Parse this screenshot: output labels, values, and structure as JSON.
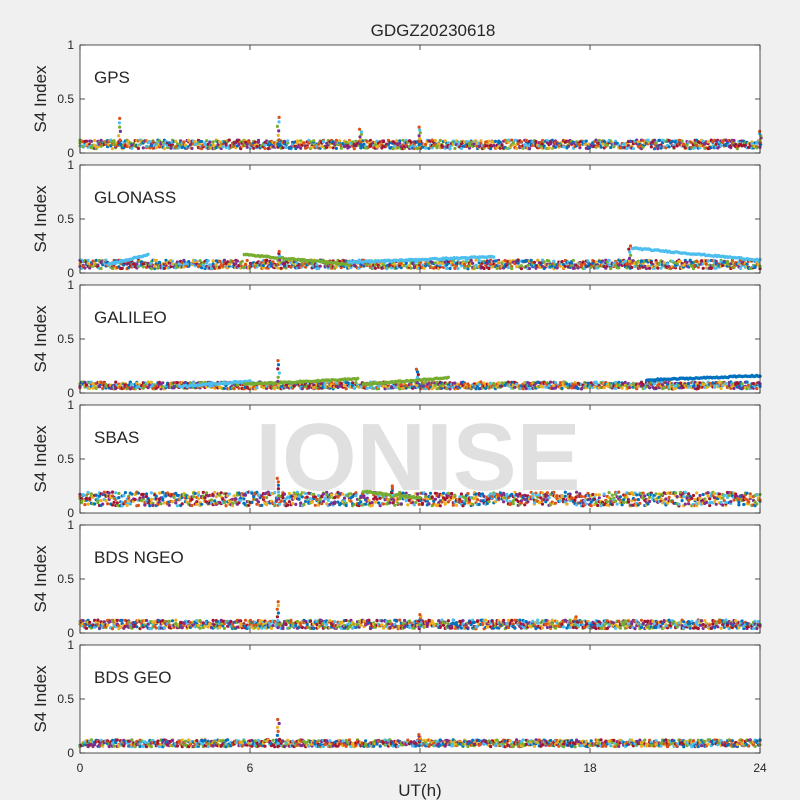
{
  "chart_data": {
    "type": "scatter",
    "title": "GDGZ20230618",
    "xlabel": "UT(h)",
    "ylabel": "S4 Index",
    "xlim": [
      0,
      24
    ],
    "ylim": [
      0,
      1
    ],
    "xticks": [
      0,
      6,
      12,
      18,
      24
    ],
    "yticks": [
      0,
      0.5,
      1
    ],
    "ytick_labels": [
      "0",
      "0.5",
      "1"
    ],
    "grid": false,
    "watermark": "IONISE",
    "series_colors": [
      "#0072bd",
      "#d95319",
      "#edb120",
      "#7e2f8e",
      "#77ac30",
      "#4dbeee",
      "#a2142f"
    ],
    "panels": [
      {
        "label": "GPS",
        "baseline": 0.08,
        "spread": 0.05,
        "spikes": [
          {
            "x": 1.4,
            "y": 0.32
          },
          {
            "x": 7.0,
            "y": 0.33
          },
          {
            "x": 9.9,
            "y": 0.22
          },
          {
            "x": 12.0,
            "y": 0.24
          },
          {
            "x": 24.0,
            "y": 0.2
          }
        ]
      },
      {
        "label": "GLONASS",
        "baseline": 0.08,
        "spread": 0.05,
        "arcs": [
          {
            "x0": 1.0,
            "x1": 2.4,
            "y0": 0.08,
            "y1": 0.17,
            "color": "#4dbeee"
          },
          {
            "x0": 5.8,
            "x1": 9.5,
            "y0": 0.17,
            "y1": 0.08,
            "color": "#77ac30"
          },
          {
            "x0": 9.5,
            "x1": 14.6,
            "y0": 0.1,
            "y1": 0.15,
            "color": "#4dbeee"
          },
          {
            "x0": 19.5,
            "x1": 24.0,
            "y0": 0.23,
            "y1": 0.12,
            "color": "#4dbeee"
          }
        ],
        "spikes": [
          {
            "x": 7.0,
            "y": 0.2
          },
          {
            "x": 19.4,
            "y": 0.25
          }
        ]
      },
      {
        "label": "GALILEO",
        "baseline": 0.07,
        "spread": 0.04,
        "arcs": [
          {
            "x0": 3.5,
            "x1": 6.0,
            "y0": 0.06,
            "y1": 0.11,
            "color": "#4dbeee"
          },
          {
            "x0": 5.8,
            "x1": 9.8,
            "y0": 0.08,
            "y1": 0.13,
            "color": "#77ac30"
          },
          {
            "x0": 10.0,
            "x1": 13.0,
            "y0": 0.08,
            "y1": 0.14,
            "color": "#77ac30"
          },
          {
            "x0": 20.0,
            "x1": 24.0,
            "y0": 0.12,
            "y1": 0.16,
            "color": "#0072bd"
          }
        ],
        "spikes": [
          {
            "x": 7.0,
            "y": 0.3
          },
          {
            "x": 11.9,
            "y": 0.22
          }
        ]
      },
      {
        "label": "SBAS",
        "baseline": 0.13,
        "spread": 0.08,
        "arcs": [
          {
            "x0": 10.0,
            "x1": 12.0,
            "y0": 0.2,
            "y1": 0.14,
            "color": "#77ac30"
          }
        ],
        "spikes": [
          {
            "x": 7.0,
            "y": 0.32
          },
          {
            "x": 11.0,
            "y": 0.25
          }
        ]
      },
      {
        "label": "BDS NGEO",
        "baseline": 0.08,
        "spread": 0.05,
        "spikes": [
          {
            "x": 7.0,
            "y": 0.29
          },
          {
            "x": 12.0,
            "y": 0.17
          },
          {
            "x": 17.5,
            "y": 0.15
          }
        ]
      },
      {
        "label": "BDS GEO",
        "baseline": 0.09,
        "spread": 0.04,
        "spikes": [
          {
            "x": 7.0,
            "y": 0.31
          },
          {
            "x": 12.0,
            "y": 0.17
          }
        ]
      }
    ]
  }
}
